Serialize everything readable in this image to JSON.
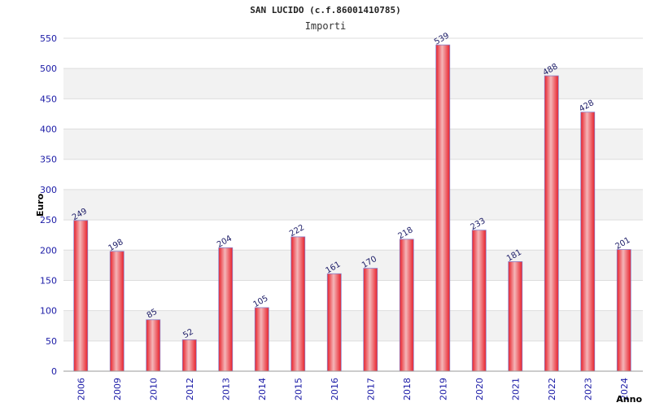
{
  "chart_data": {
    "type": "bar",
    "title": "SAN LUCIDO (c.f.86001410785)",
    "subtitle": "Importi",
    "xlabel": "Anno",
    "ylabel": "Euro",
    "categories": [
      "2006",
      "2009",
      "2010",
      "2012",
      "2013",
      "2014",
      "2015",
      "2016",
      "2017",
      "2018",
      "2019",
      "2020",
      "2021",
      "2022",
      "2023",
      "2024"
    ],
    "values": [
      249,
      198,
      85,
      52,
      204,
      105,
      222,
      161,
      170,
      218,
      539,
      233,
      181,
      488,
      428,
      201
    ],
    "ylim": [
      0,
      550
    ],
    "yticks": [
      0,
      50,
      100,
      150,
      200,
      250,
      300,
      350,
      400,
      450,
      500,
      550
    ],
    "grid": true,
    "bar_color": "#e8202a",
    "highlight_color": "#f4b6b8",
    "tick_color": "#1a1aa6",
    "band_color": "#f2f2f2"
  }
}
